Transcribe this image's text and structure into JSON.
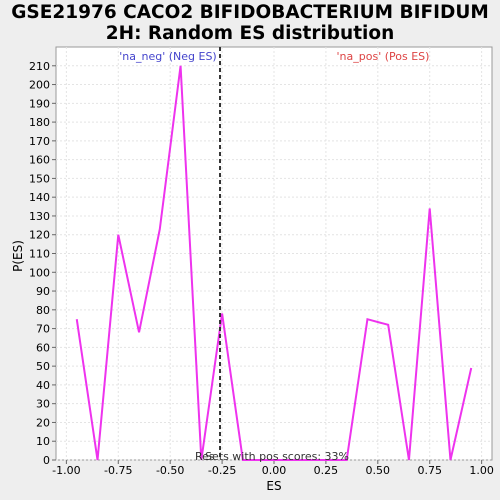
{
  "chart_data": {
    "type": "line",
    "title_line1": "GSE21976 CACO2 BIFIDOBACTERIUM BIFIDUM",
    "title_line2": "2H: Random ES distribution",
    "xlabel": "ES",
    "ylabel": "P(ES)",
    "xlim": [
      -1.05,
      1.05
    ],
    "ylim": [
      0,
      220
    ],
    "x_ticks": [
      -1.0,
      -0.75,
      -0.5,
      -0.25,
      0.0,
      0.25,
      0.5,
      0.75,
      1.0
    ],
    "x_tick_labels": [
      "-1.00",
      "-0.75",
      "-0.50",
      "-0.25",
      "0.00",
      "0.25",
      "0.50",
      "0.75",
      "1.00"
    ],
    "y_ticks": [
      0,
      10,
      20,
      30,
      40,
      50,
      60,
      70,
      80,
      90,
      100,
      110,
      120,
      130,
      140,
      150,
      160,
      170,
      180,
      190,
      200,
      210
    ],
    "grid": true,
    "series": [
      {
        "color": "#ee33ee",
        "x": [
          -0.95,
          -0.85,
          -0.75,
          -0.65,
          -0.55,
          -0.45,
          -0.35,
          -0.25,
          -0.15,
          -0.05,
          0.05,
          0.15,
          0.25,
          0.35,
          0.45,
          0.55,
          0.65,
          0.75,
          0.85,
          0.95
        ],
        "y": [
          75,
          0,
          120,
          68,
          123,
          210,
          0,
          78,
          0,
          0,
          0,
          0,
          0,
          0,
          75,
          72,
          0,
          134,
          0,
          49
        ]
      }
    ],
    "dashed_line": {
      "x": -0.26,
      "color": "#333333"
    },
    "neg_label": "'na_neg' (Neg ES)",
    "pos_label": "'na_pos' (Pos ES)",
    "neg_color": "#4444cc",
    "pos_color": "#dd4444",
    "annotation_prefix": "Res",
    "annotation": "Sets with pos scores: 33%"
  }
}
